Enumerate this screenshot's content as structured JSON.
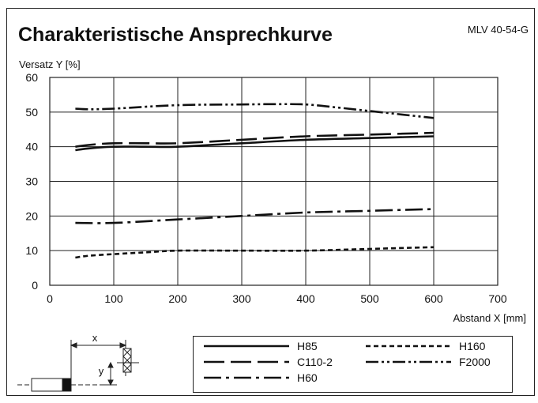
{
  "header": {
    "title": "Charakteristische Ansprechkurve",
    "model": "MLV 40-54-G"
  },
  "chart_data": {
    "type": "line",
    "title": "Charakteristische Ansprechkurve",
    "xlabel": "Abstand X [mm]",
    "ylabel": "Versatz Y [%]",
    "xlim": [
      0,
      700
    ],
    "ylim": [
      0,
      60
    ],
    "xticks": [
      "0",
      "100",
      "200",
      "300",
      "400",
      "500",
      "600",
      "700"
    ],
    "yticks": [
      "0",
      "10",
      "20",
      "30",
      "40",
      "50",
      "60"
    ],
    "grid": true,
    "legend_position": "bottom",
    "series": [
      {
        "name": "H85",
        "style": "solid",
        "x": [
          40,
          60,
          100,
          150,
          200,
          300,
          400,
          500,
          600
        ],
        "y": [
          39,
          39.5,
          40,
          40,
          40,
          41,
          42,
          42.5,
          43
        ]
      },
      {
        "name": "C110-2",
        "style": "long-dash",
        "x": [
          40,
          60,
          100,
          150,
          200,
          300,
          400,
          500,
          600
        ],
        "y": [
          40,
          40.5,
          41,
          41,
          41,
          42,
          43,
          43.5,
          44
        ]
      },
      {
        "name": "H60",
        "style": "dash-dot",
        "x": [
          40,
          100,
          200,
          300,
          400,
          500,
          600
        ],
        "y": [
          18,
          18,
          19,
          20,
          21,
          21.5,
          22
        ]
      },
      {
        "name": "H160",
        "style": "short-dash",
        "x": [
          40,
          60,
          100,
          150,
          200,
          300,
          400,
          500,
          600
        ],
        "y": [
          8,
          8.5,
          9,
          9.5,
          10,
          10,
          10,
          10.5,
          11
        ]
      },
      {
        "name": "F2000",
        "style": "dash-dot-dot",
        "x": [
          40,
          60,
          100,
          200,
          300,
          350,
          400,
          450,
          500,
          550,
          600
        ],
        "y": [
          51,
          50.8,
          51,
          52,
          52.2,
          52.3,
          52.2,
          51.3,
          50.3,
          49.3,
          48.3
        ]
      }
    ]
  },
  "diagram": {
    "x_label": "x",
    "y_label": "y"
  },
  "colors": {
    "line": "#111111",
    "frame": "#222222"
  }
}
